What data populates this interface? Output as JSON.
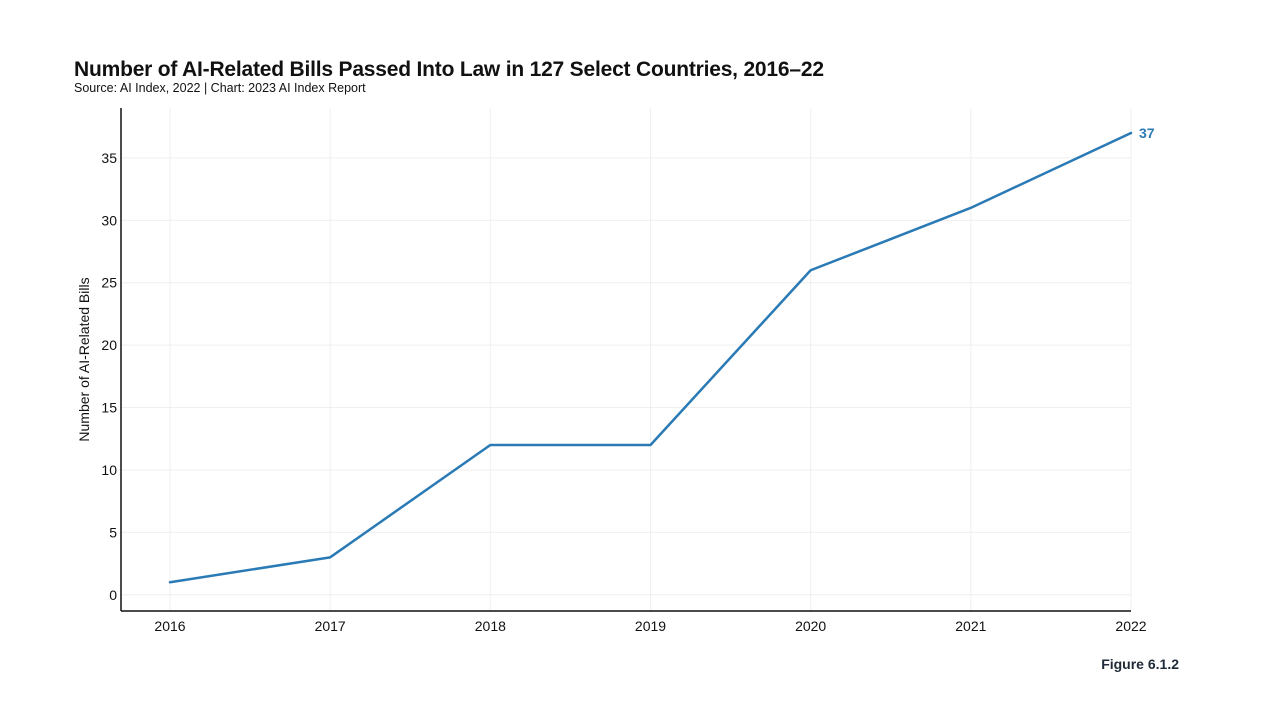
{
  "header": {
    "title": "Number of AI-Related Bills Passed Into Law in 127 Select Countries, 2016–22",
    "subtitle": "Source: AI Index, 2022 | Chart: 2023 AI Index Report"
  },
  "footer": {
    "figure_label": "Figure 6.1.2"
  },
  "colors": {
    "line": "#2a7ab5",
    "end_label": "#2a7ab5",
    "grid": "#efefef",
    "axis": "#111111"
  },
  "chart_data": {
    "type": "line",
    "title": "Number of AI-Related Bills Passed Into Law in 127 Select Countries, 2016–22",
    "subtitle": "Source: AI Index, 2022 | Chart: 2023 AI Index Report",
    "xlabel": "",
    "ylabel": "Number of AI-Related Bills",
    "x": [
      "2016",
      "2017",
      "2018",
      "2019",
      "2020",
      "2021",
      "2022"
    ],
    "series": [
      {
        "values": [
          1,
          3,
          12,
          12,
          26,
          31,
          37
        ]
      }
    ],
    "end_label": "37",
    "ylim": [
      -1.3,
      39
    ],
    "yticks": [
      0,
      5,
      10,
      15,
      20,
      25,
      30,
      35
    ],
    "grid": true,
    "legend": "none"
  }
}
